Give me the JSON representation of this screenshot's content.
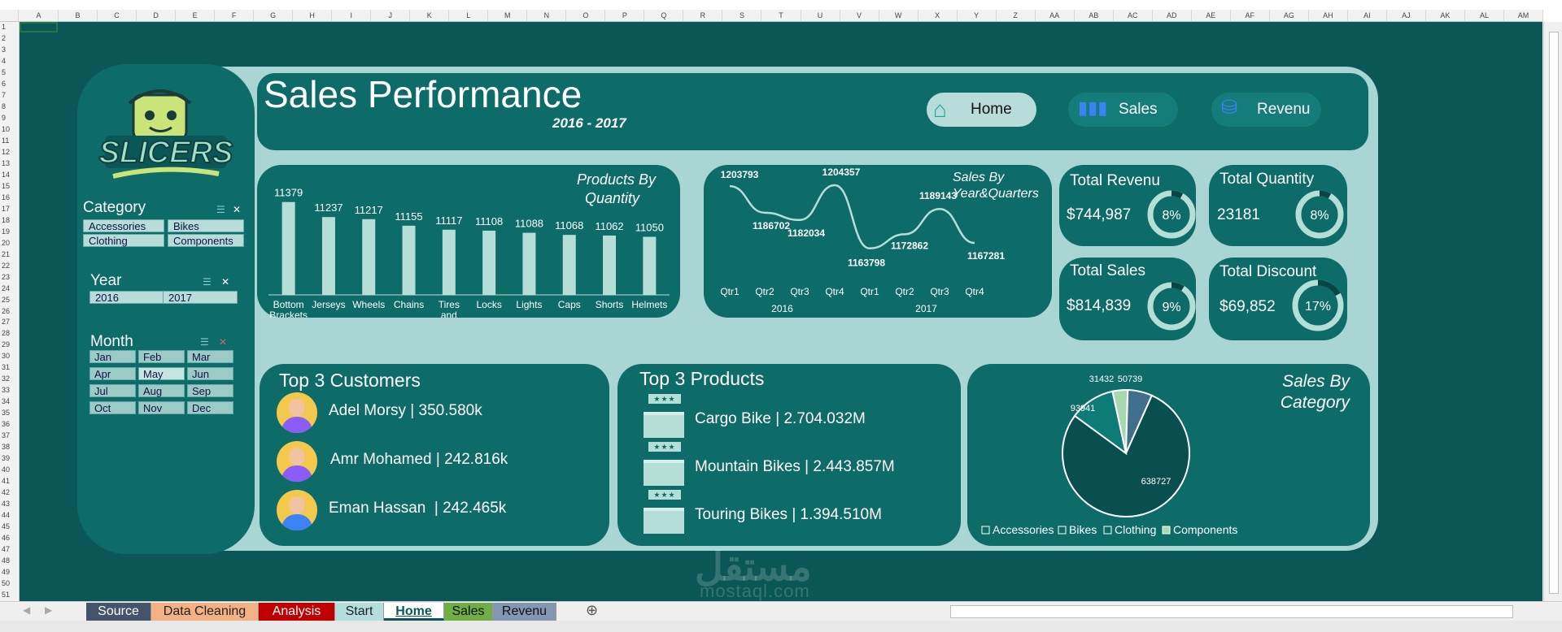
{
  "sheet": {
    "columns": [
      "A",
      "B",
      "C",
      "D",
      "E",
      "F",
      "G",
      "H",
      "I",
      "J",
      "K",
      "L",
      "M",
      "N",
      "O",
      "P",
      "Q",
      "R",
      "S",
      "T",
      "U",
      "V",
      "W",
      "X",
      "Y",
      "Z",
      "AA",
      "AB",
      "AC",
      "AD",
      "AE",
      "AF",
      "AG",
      "AH",
      "AI",
      "AJ",
      "AK",
      "AL",
      "AM"
    ],
    "rows": [
      "1",
      "2",
      "3",
      "4",
      "5",
      "6",
      "7",
      "8",
      "9",
      "10",
      "11",
      "12",
      "13",
      "14",
      "15",
      "16",
      "17",
      "18",
      "19",
      "20",
      "21",
      "22",
      "23",
      "24",
      "25",
      "26",
      "27",
      "28",
      "29",
      "30",
      "31",
      "32",
      "33",
      "34",
      "35",
      "36",
      "37",
      "38",
      "39",
      "40",
      "41",
      "42",
      "43",
      "44",
      "45",
      "46",
      "47",
      "48",
      "49",
      "50",
      "51"
    ],
    "tabs": [
      {
        "label": "Source",
        "bg": "#44546a",
        "fg": "#ffffff"
      },
      {
        "label": "Data Cleaning",
        "bg": "#f4b183",
        "fg": "#222222"
      },
      {
        "label": "Analysis",
        "bg": "#c00000",
        "fg": "#ffffff"
      },
      {
        "label": "Start",
        "bg": "#b4dedc",
        "fg": "#222222"
      },
      {
        "label": "Home",
        "bg": "#ffffff",
        "fg": "#0b5656"
      },
      {
        "label": "Sales",
        "bg": "#70ad47",
        "fg": "#111111"
      },
      {
        "label": "Revenu",
        "bg": "#8497b0",
        "fg": "#111111"
      }
    ],
    "active_tab": "Home"
  },
  "dashboard": {
    "title": "Sales Performance",
    "subtitle": "2016 - 2017",
    "logo_text": "SLICERS",
    "nav": [
      {
        "label": "Home",
        "icon": "home-icon"
      },
      {
        "label": "Sales",
        "icon": "bar-chart-icon"
      },
      {
        "label": "Revenu",
        "icon": "coins-icon"
      }
    ],
    "slicers": {
      "category": {
        "title": "Category",
        "items": [
          "Accessories",
          "Bikes",
          "Clothing",
          "Components"
        ]
      },
      "year": {
        "title": "Year",
        "items": [
          "2016",
          "2017"
        ]
      },
      "month": {
        "title": "Month",
        "items": [
          "Jan",
          "Feb",
          "Mar",
          "Apr",
          "May",
          "Jun",
          "Jul",
          "Aug",
          "Sep",
          "Oct",
          "Nov",
          "Dec"
        ],
        "selected": "May"
      }
    },
    "kpis": {
      "total_revenu": {
        "title": "Total Revenu",
        "value": "$744,987",
        "pct": "8%",
        "fraction": 0.08
      },
      "total_quantity": {
        "title": "Total Quantity",
        "value": "23181",
        "pct": "8%",
        "fraction": 0.08
      },
      "total_sales": {
        "title": "Total Sales",
        "value": "$814,839",
        "pct": "9%",
        "fraction": 0.09
      },
      "total_discount": {
        "title": "Total Discount",
        "value": "$69,852",
        "pct": "17%",
        "fraction": 0.17
      }
    },
    "top_customers": {
      "title": "Top 3 Customers",
      "items": [
        "Adel Morsy | 350.580k",
        "Amr Mohamed | 242.816k",
        "Eman Hassan  | 242.465k"
      ]
    },
    "top_products": {
      "title": "Top 3 Products",
      "items": [
        "Cargo Bike | 2.704.032M",
        "Mountain Bikes | 2.443.857M",
        "Touring Bikes | 1.394.510M"
      ]
    },
    "watermark": {
      "arabic": "مستقل",
      "latin": "mostaql.com"
    }
  },
  "chart_data": [
    {
      "type": "bar",
      "title": "Products By Quantity",
      "categories": [
        "Bottom Brackets",
        "Jerseys",
        "Wheels",
        "Chains",
        "Tires and Tubes",
        "Locks",
        "Lights",
        "Caps",
        "Shorts",
        "Helmets"
      ],
      "values": [
        11379,
        11237,
        11217,
        11155,
        11117,
        11108,
        11088,
        11068,
        11062,
        11050
      ],
      "color": "#b6ded9"
    },
    {
      "type": "line",
      "title": "Sales By Year&Quarters",
      "categories": [
        "Qtr1",
        "Qtr2",
        "Qtr3",
        "Qtr4",
        "Qtr1",
        "Qtr2",
        "Qtr3",
        "Qtr4"
      ],
      "groups": [
        "2016",
        "2017"
      ],
      "values": [
        1203793,
        1186702,
        1182034,
        1204357,
        1163798,
        1172862,
        1189143,
        1167281
      ],
      "color": "#b6ded9"
    },
    {
      "type": "pie",
      "title": "Sales By Category",
      "legend": [
        "Accessories",
        "Bikes",
        "Clothing",
        "Components"
      ],
      "slices": [
        {
          "name": "Bikes",
          "value": 638727,
          "color": "#0a4f4f"
        },
        {
          "name": "Clothing",
          "value": 93941,
          "color": "#0f7b77"
        },
        {
          "name": "Components",
          "value": 31432,
          "color": "#a8d8b0"
        },
        {
          "name": "Accessories",
          "value": 50739,
          "color": "#3f6f8a"
        }
      ]
    }
  ]
}
